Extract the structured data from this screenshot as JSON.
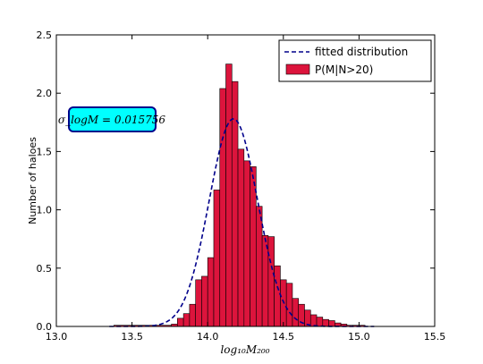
{
  "chart_data": {
    "type": "bar",
    "xlabel": "log₁₀M₂₀₀",
    "ylabel": "Number of haloes",
    "xlim": [
      13.0,
      15.5
    ],
    "ylim": [
      0.0,
      2.5
    ],
    "xticks": [
      "13.0",
      "13.5",
      "14.0",
      "14.5",
      "15.0",
      "15.5"
    ],
    "yticks": [
      "0.0",
      "0.5",
      "1.0",
      "1.5",
      "2.0",
      "2.5"
    ],
    "grid": false,
    "legend_position": "top-right",
    "annotation": "σ_logM = 0.015756",
    "colors": {
      "bars": "#DC143C",
      "bar_edge": "#000000",
      "fit_line": "#00008B",
      "annotation_bg": "#00FFFF",
      "annotation_border": "#00008B"
    },
    "series": [
      {
        "name": "P(M|N>20)",
        "kind": "histogram",
        "bin_edges": [
          13.38,
          13.76,
          13.8,
          13.84,
          13.88,
          13.92,
          13.96,
          14.0,
          14.04,
          14.08,
          14.12,
          14.16,
          14.2,
          14.24,
          14.28,
          14.32,
          14.36,
          14.4,
          14.44,
          14.48,
          14.52,
          14.56,
          14.6,
          14.64,
          14.68,
          14.72,
          14.76,
          14.8,
          14.84,
          14.88,
          14.92,
          14.96,
          15.0,
          15.04
        ],
        "values": [
          0.01,
          0.02,
          0.07,
          0.11,
          0.19,
          0.4,
          0.43,
          0.59,
          1.17,
          2.04,
          2.25,
          2.1,
          1.52,
          1.42,
          1.37,
          1.03,
          0.78,
          0.77,
          0.52,
          0.4,
          0.37,
          0.24,
          0.19,
          0.14,
          0.1,
          0.08,
          0.06,
          0.05,
          0.03,
          0.02,
          0.01,
          0.01,
          0.01
        ]
      },
      {
        "name": "fitted distribution",
        "kind": "line",
        "style": "dashed",
        "mean": 14.17,
        "sigma": 0.16,
        "amplitude": 1.78
      }
    ]
  }
}
